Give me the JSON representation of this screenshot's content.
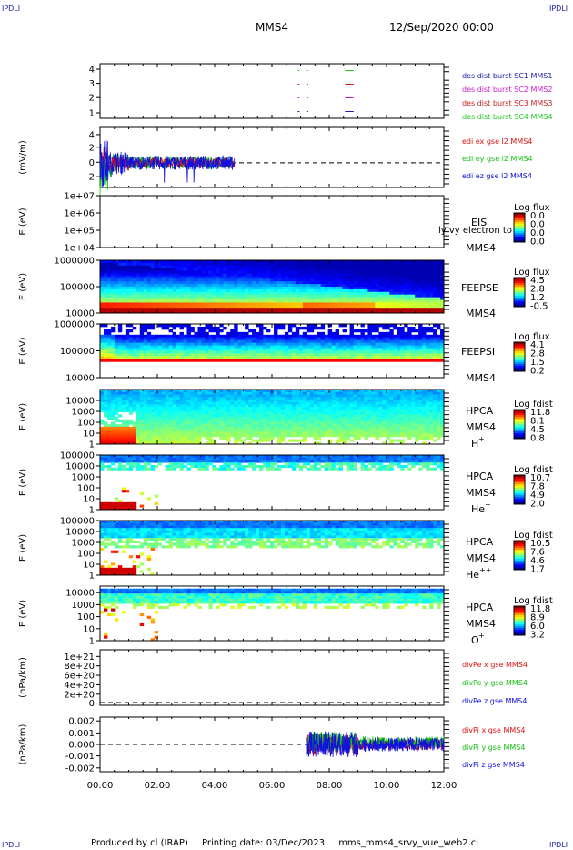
{
  "header": {
    "corner_tl": "IPDLI",
    "corner_tr": "IPDLI",
    "corner_bl": "IPDLI",
    "corner_br": "IPDLI",
    "spacecraft": "MMS4",
    "datetime": "12/Sep/2020 00:00"
  },
  "footer": {
    "produced": "Produced by cl (IRAP)",
    "printing": "Printing date: 03/Dec/2023",
    "script": "mms_mms4_srvy_vue_web2.cl"
  },
  "colors": {
    "axis": "#000000",
    "mms1": "#1a1aa8",
    "mms2": "#c81ec8",
    "mms3": "#c81e1e",
    "mms4": "#1ec81e",
    "x": "#e01010",
    "y": "#10c010",
    "z": "#1010e0"
  },
  "chart_data": [
    {
      "id": "burst",
      "type": "line",
      "yticks": [
        "4",
        "3",
        "2",
        "1"
      ],
      "ylim": [
        0.5,
        4.5
      ],
      "series": [
        {
          "name": "des dist burst SC1 MMS1",
          "y": 1,
          "segments": [
            [
              6.9,
              7.0
            ],
            [
              7.2,
              7.3
            ],
            [
              8.55,
              8.85
            ]
          ]
        },
        {
          "name": "des dist burst SC2 MMS2",
          "y": 2,
          "segments": [
            [
              6.9,
              7.0
            ],
            [
              7.2,
              7.3
            ],
            [
              8.55,
              8.85
            ]
          ]
        },
        {
          "name": "des dist burst SC3 MMS3",
          "y": 3,
          "segments": [
            [
              6.9,
              7.0
            ],
            [
              7.2,
              7.3
            ],
            [
              8.55,
              8.85
            ]
          ]
        },
        {
          "name": "des dist burst SC4 MMS4",
          "y": 4,
          "segments": [
            [
              6.9,
              7.0
            ],
            [
              7.2,
              7.3
            ],
            [
              8.55,
              8.85
            ]
          ]
        }
      ]
    },
    {
      "id": "edi",
      "type": "line",
      "ylabel": "(mV/m)",
      "yticks": [
        "4",
        "2",
        "0",
        "-2"
      ],
      "ylim": [
        -3.5,
        5
      ],
      "x_extent": [
        0,
        4.7
      ],
      "series": [
        {
          "name": "edi ex gse l2 MMS4"
        },
        {
          "name": "edi ey gse l2 MMS4"
        },
        {
          "name": "edi ez gse l2 MMS4"
        }
      ]
    },
    {
      "id": "eis",
      "type": "heatmap",
      "ylabel": "E (eV)",
      "yticks": [
        "1e+07",
        "1e+06",
        "1e+05",
        "1e+04"
      ],
      "labels": [
        "EIS",
        "MMS4"
      ],
      "overlay": "ly vy electron to",
      "colorbar": {
        "title": "Log flux",
        "ticks": [
          "0.0",
          "0.0",
          "0.0",
          "0.0"
        ]
      }
    },
    {
      "id": "feepse",
      "type": "heatmap",
      "ylabel": "E (eV)",
      "yticks": [
        "1000000",
        "100000",
        "10000"
      ],
      "labels": [
        "FEEPSE",
        "MMS4"
      ],
      "colorbar": {
        "title": "Log flux",
        "ticks": [
          "4.5",
          "2.8",
          "1.2",
          "-0.5"
        ]
      }
    },
    {
      "id": "feepsi",
      "type": "heatmap",
      "ylabel": "E (eV)",
      "yticks": [
        "1000000",
        "100000",
        "10000"
      ],
      "labels": [
        "FEEPSI",
        "MMS4"
      ],
      "colorbar": {
        "title": "Log flux",
        "ticks": [
          "4.1",
          "2.8",
          "1.5",
          "0.2"
        ]
      }
    },
    {
      "id": "hpca_h",
      "type": "heatmap",
      "ylabel": "E (eV)",
      "yticks": [
        "10000",
        "1000",
        "100",
        "10",
        "1"
      ],
      "labels": [
        "HPCA",
        "MMS4"
      ],
      "species": "H",
      "charge": "+",
      "colorbar": {
        "title": "Log fdist",
        "ticks": [
          "11.8",
          "8.1",
          "4.5",
          "0.8"
        ]
      }
    },
    {
      "id": "hpca_he",
      "type": "heatmap",
      "ylabel": "E (eV)",
      "yticks": [
        "100000",
        "10000",
        "1000",
        "100",
        "10",
        "1"
      ],
      "labels": [
        "HPCA",
        "MMS4"
      ],
      "species": "He",
      "charge": "+",
      "colorbar": {
        "title": "Log fdist",
        "ticks": [
          "10.7",
          "7.8",
          "4.9",
          "2.0"
        ]
      }
    },
    {
      "id": "hpca_hepp",
      "type": "heatmap",
      "ylabel": "E (eV)",
      "yticks": [
        "100000",
        "10000",
        "1000",
        "100",
        "10",
        "1"
      ],
      "labels": [
        "HPCA",
        "MMS4"
      ],
      "species": "He",
      "charge": "++",
      "colorbar": {
        "title": "Log fdist",
        "ticks": [
          "10.5",
          "7.6",
          "4.6",
          "1.7"
        ]
      }
    },
    {
      "id": "hpca_o",
      "type": "heatmap",
      "ylabel": "E (eV)",
      "yticks": [
        "10000",
        "1000",
        "100",
        "10",
        "1"
      ],
      "labels": [
        "HPCA",
        "MMS4"
      ],
      "species": "O",
      "charge": "+",
      "colorbar": {
        "title": "Log fdist",
        "ticks": [
          "11.8",
          "8.9",
          "6.0",
          "3.2"
        ]
      }
    },
    {
      "id": "divpe",
      "type": "line",
      "ylabel": "(nPa/km)",
      "yticks": [
        "1e+21",
        "8e+20",
        "6e+20",
        "4e+20",
        "2e+20",
        "0"
      ],
      "series": [
        {
          "name": "divPe x gse MMS4"
        },
        {
          "name": "divPe y gse MMS4"
        },
        {
          "name": "divPe z gse MMS4"
        }
      ]
    },
    {
      "id": "divpi",
      "type": "line",
      "ylabel": "(nPa/km)",
      "yticks": [
        "0.002",
        "0.001",
        "0.000",
        "-0.001",
        "-0.002"
      ],
      "ylim": [
        -0.0022,
        0.0022
      ],
      "x_extent": [
        7.2,
        12
      ],
      "series": [
        {
          "name": "divPi x gse MMS4"
        },
        {
          "name": "divPi y gse MMS4"
        },
        {
          "name": "divPi z gse MMS4"
        }
      ]
    }
  ],
  "xaxis": {
    "ticks": [
      "00:00",
      "02:00",
      "04:00",
      "06:00",
      "08:00",
      "10:00",
      "12:00"
    ],
    "range_hours": [
      0,
      12
    ]
  }
}
